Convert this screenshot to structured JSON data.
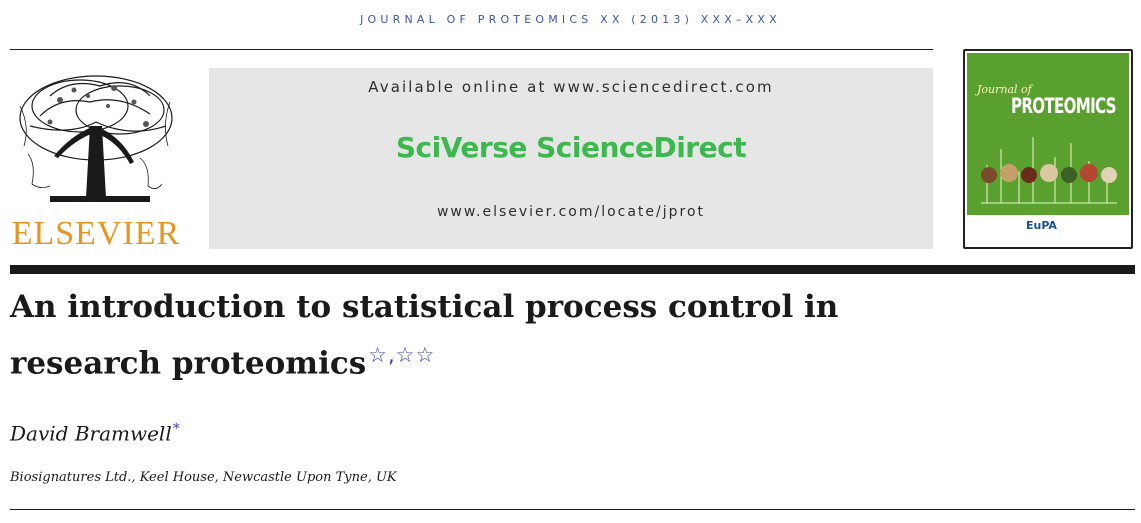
{
  "header": {
    "running_head": "JOURNAL OF PROTEOMICS XX (2013) XXX–XXX"
  },
  "logo": {
    "publisher_word": "ELSEVIER",
    "icon": "elsevier-tree-icon"
  },
  "banner": {
    "available_online": "Available online at www.sciencedirect.com",
    "brand": "SciVerse ScienceDirect",
    "journal_url": "www.elsevier.com/locate/jprot",
    "brand_color": "#3cb84f"
  },
  "cover": {
    "journal_prefix": "Journal of",
    "journal_name": "PROTEOMICS",
    "society_logo": "EuPA",
    "background_color": "#5aa02e"
  },
  "article": {
    "title_line1": "An introduction to statistical process control in",
    "title_line2": "research proteomics",
    "title_footnote_marks": "☆,☆☆",
    "author": "David Bramwell",
    "author_mark": "*",
    "affiliation": "Biosignatures Ltd., Keel House, Newcastle Upon Tyne, UK"
  }
}
